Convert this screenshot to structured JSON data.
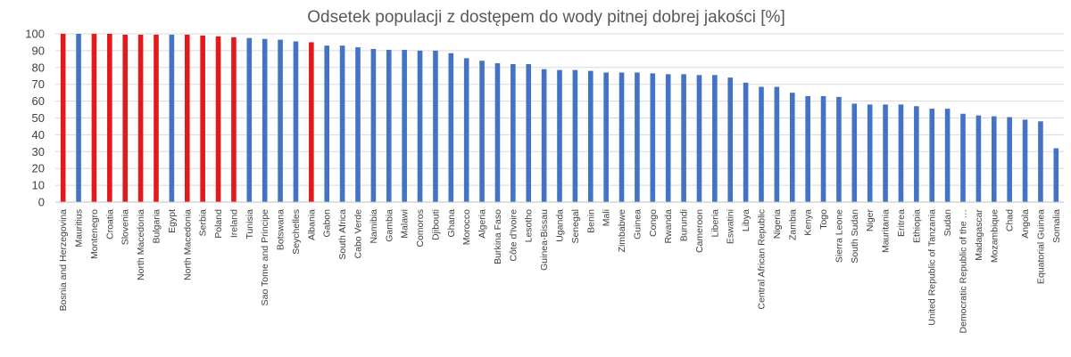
{
  "chart_data": {
    "type": "bar",
    "title": "Odsetek populacji z dostępem do wody pitnej dobrej jakości [%]",
    "xlabel": "",
    "ylabel": "",
    "ylim": [
      0,
      100
    ],
    "yticks": [
      0,
      10,
      20,
      30,
      40,
      50,
      60,
      70,
      80,
      90,
      100
    ],
    "grid": true,
    "colors": {
      "highlight": "#e31a1c",
      "default": "#4472c4"
    },
    "categories": [
      "Bosnia and Herzegovina",
      "Mauritius",
      "Montenegro",
      "Croatia",
      "Slovenia",
      "North Macedonia",
      "Bulgaria",
      "Egypt",
      "North Macedonia",
      "Serbia",
      "Poland",
      "Ireland",
      "Tunisia",
      "Sao Tome and Principe",
      "Botswana",
      "Seychelles",
      "Albania",
      "Gabon",
      "South Africa",
      "Cabo Verde",
      "Namibia",
      "Gambia",
      "Malawi",
      "Comoros",
      "Djibouti",
      "Ghana",
      "Morocco",
      "Algeria",
      "Burkina Faso",
      "Côte d'Ivoire",
      "Lesotho",
      "Guinea-Bissau",
      "Uganda",
      "Senegal",
      "Benin",
      "Mali",
      "Zimbabwe",
      "Guinea",
      "Congo",
      "Rwanda",
      "Burundi",
      "Cameroon",
      "Liberia",
      "Eswatini",
      "Libya",
      "Central African Republic",
      "Nigeria",
      "Zambia",
      "Kenya",
      "Togo",
      "Sierra Leone",
      "South Sudan",
      "Niger",
      "Mauritania",
      "Eritrea",
      "Ethiopia",
      "United Republic of Tanzania",
      "Sudan",
      "Democratic Republic of the …",
      "Madagascar",
      "Mozambique",
      "Chad",
      "Angola",
      "Equatorial Guinea",
      "Somalia"
    ],
    "values": [
      100,
      100,
      100,
      100,
      99.5,
      99.5,
      99.5,
      99.5,
      99.5,
      99,
      98.5,
      98,
      97.5,
      97,
      96.5,
      95.5,
      95,
      93,
      93,
      92,
      91,
      90.5,
      90.5,
      90,
      90,
      88.5,
      85.5,
      84,
      82.5,
      82,
      82,
      79,
      78.5,
      78.5,
      78,
      77,
      77,
      77,
      76.5,
      76,
      76,
      75.5,
      75.5,
      74,
      71,
      68.5,
      68.5,
      65,
      63,
      63,
      62.5,
      58.5,
      58,
      58,
      58,
      57,
      55.5,
      55.5,
      52.5,
      51.5,
      51,
      50.5,
      49,
      48,
      32
    ],
    "highlight": [
      true,
      false,
      true,
      true,
      true,
      true,
      true,
      false,
      true,
      true,
      true,
      true,
      false,
      false,
      false,
      false,
      true,
      false,
      false,
      false,
      false,
      false,
      false,
      false,
      false,
      false,
      false,
      false,
      false,
      false,
      false,
      false,
      false,
      false,
      false,
      false,
      false,
      false,
      false,
      false,
      false,
      false,
      false,
      false,
      false,
      false,
      false,
      false,
      false,
      false,
      false,
      false,
      false,
      false,
      false,
      false,
      false,
      false,
      false,
      false,
      false,
      false,
      false,
      false,
      false
    ]
  }
}
